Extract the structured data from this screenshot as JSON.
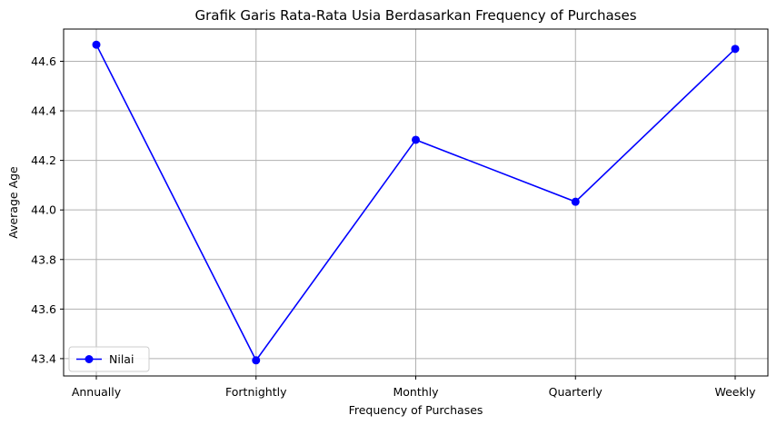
{
  "chart_data": {
    "type": "line",
    "title": "Grafik Garis Rata-Rata Usia Berdasarkan Frequency of Purchases",
    "xlabel": "Frequency of Purchases",
    "ylabel": "Average Age",
    "categories": [
      "Annually",
      "Fortnightly",
      "Monthly",
      "Quarterly",
      "Weekly"
    ],
    "series": [
      {
        "name": "Nilai",
        "color": "#0000ff",
        "marker": "circle",
        "values": [
          44.667,
          43.393,
          44.283,
          44.033,
          44.65
        ]
      }
    ],
    "ylim": [
      43.33,
      44.73
    ],
    "yticks": [
      43.4,
      43.6,
      43.8,
      44.0,
      44.2,
      44.4,
      44.6
    ],
    "ytick_labels": [
      "43.4",
      "43.6",
      "43.8",
      "44.0",
      "44.2",
      "44.4",
      "44.6"
    ],
    "grid": true,
    "legend_position": "lower-left"
  }
}
